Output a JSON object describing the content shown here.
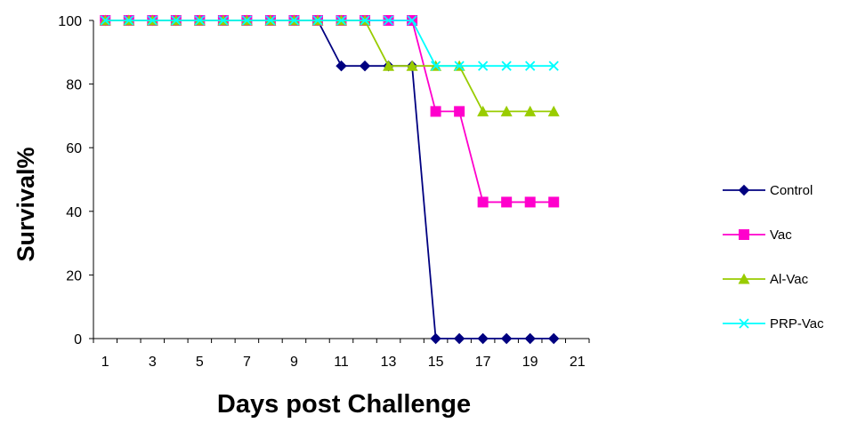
{
  "chart_data": {
    "type": "line",
    "title": "",
    "xlabel": "Days post Challenge",
    "ylabel": "Survival%",
    "xlim": [
      0.5,
      21.5
    ],
    "ylim": [
      0,
      100
    ],
    "x_ticks": [
      1,
      3,
      5,
      7,
      9,
      11,
      13,
      15,
      17,
      19,
      21
    ],
    "y_ticks": [
      0,
      20,
      40,
      60,
      80,
      100
    ],
    "grid": false,
    "legend_position": "right",
    "x": [
      1,
      2,
      3,
      4,
      5,
      6,
      7,
      8,
      9,
      10,
      11,
      12,
      13,
      14,
      15,
      16,
      17,
      18,
      19,
      20
    ],
    "series": [
      {
        "name": "Control",
        "color": "#000080",
        "marker": "diamond",
        "values": [
          100,
          100,
          100,
          100,
          100,
          100,
          100,
          100,
          100,
          100,
          85.7,
          85.7,
          85.7,
          85.7,
          0,
          0,
          0,
          0,
          0,
          0
        ]
      },
      {
        "name": "Vac",
        "color": "#FF00CC",
        "marker": "square",
        "values": [
          100,
          100,
          100,
          100,
          100,
          100,
          100,
          100,
          100,
          100,
          100,
          100,
          100,
          100,
          71.4,
          71.4,
          42.9,
          42.9,
          42.9,
          42.9
        ]
      },
      {
        "name": "Al-Vac",
        "color": "#99CC00",
        "marker": "triangle",
        "values": [
          100,
          100,
          100,
          100,
          100,
          100,
          100,
          100,
          100,
          100,
          100,
          100,
          85.7,
          85.7,
          85.7,
          85.7,
          71.4,
          71.4,
          71.4,
          71.4
        ]
      },
      {
        "name": "PRP-Vac",
        "color": "#00FFFF",
        "marker": "x",
        "values": [
          100,
          100,
          100,
          100,
          100,
          100,
          100,
          100,
          100,
          100,
          100,
          100,
          100,
          100,
          85.7,
          85.7,
          85.7,
          85.7,
          85.7,
          85.7
        ]
      }
    ]
  }
}
